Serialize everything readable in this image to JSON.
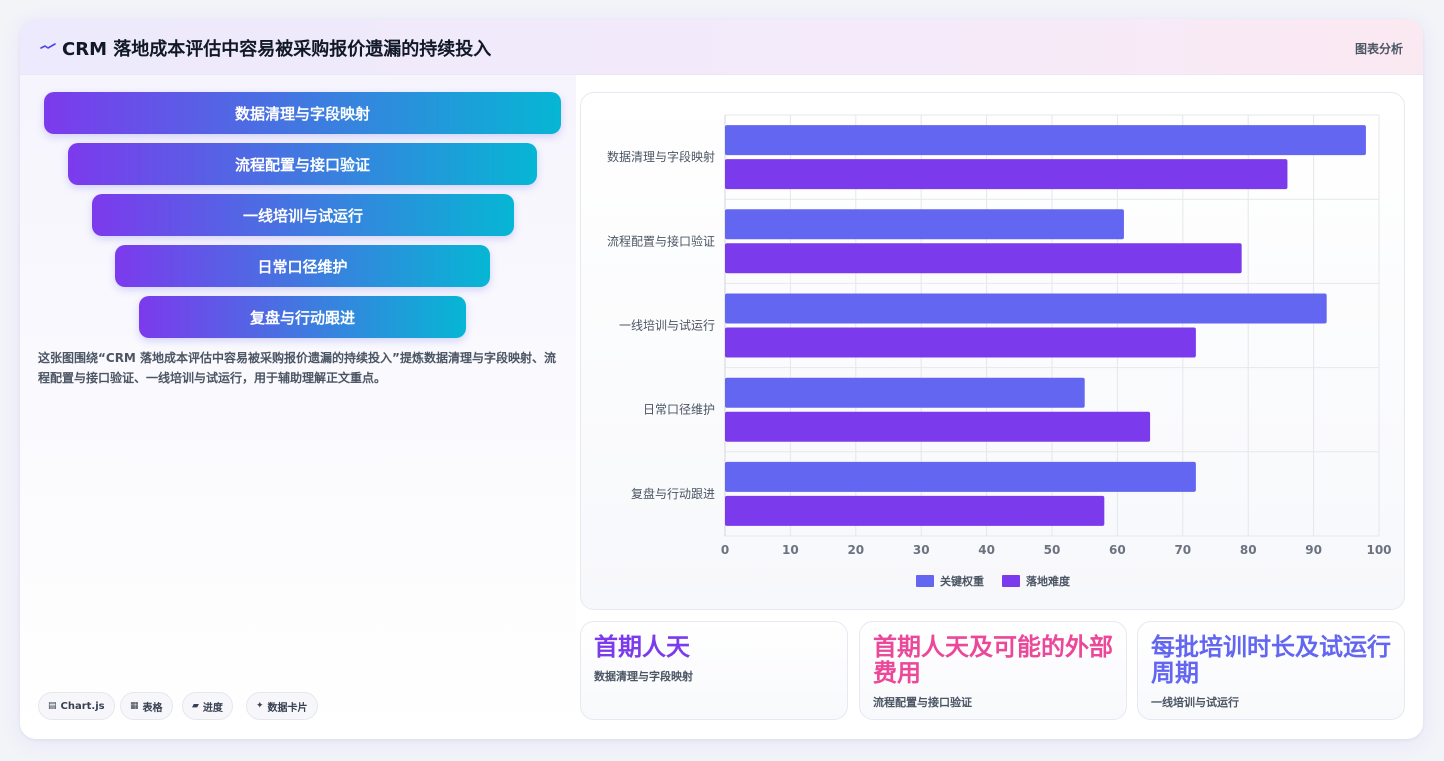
{
  "header": {
    "title": "CRM 落地成本评估中容易被采购报价遗漏的持续投入",
    "right_label": "图表分析"
  },
  "funnel": {
    "items": [
      "数据清理与字段映射",
      "流程配置与接口验证",
      "一线培训与试运行",
      "日常口径维护",
      "复盘与行动跟进"
    ]
  },
  "description": "这张图围绕“CRM 落地成本评估中容易被采购报价遗漏的持续投入”提炼数据清理与字段映射、流程配置与接口验证、一线培训与试运行，用于辅助理解正文重点。",
  "chips": [
    {
      "icon": "chart-icon",
      "glyph": "▤",
      "label": "Chart.js"
    },
    {
      "icon": "table-icon",
      "glyph": "▦",
      "label": "表格"
    },
    {
      "icon": "progress-icon",
      "glyph": "▰",
      "label": "进度"
    },
    {
      "icon": "sparkle-icon",
      "glyph": "✦",
      "label": "数据卡片"
    }
  ],
  "chart_data": {
    "type": "bar",
    "orientation": "horizontal",
    "categories": [
      "数据清理与字段映射",
      "流程配置与接口验证",
      "一线培训与试运行",
      "日常口径维护",
      "复盘与行动跟进"
    ],
    "series": [
      {
        "name": "关键权重",
        "color": "#6366f1",
        "values": [
          98,
          61,
          92,
          55,
          72
        ]
      },
      {
        "name": "落地难度",
        "color": "#7c3aed",
        "values": [
          86,
          79,
          72,
          65,
          58
        ]
      }
    ],
    "xlim": [
      0,
      100
    ],
    "xticks": [
      "0",
      "10",
      "20",
      "30",
      "40",
      "50",
      "60",
      "70",
      "80",
      "90",
      "100"
    ],
    "grid": true,
    "legend_position": "bottom"
  },
  "stats": [
    {
      "value": "首期人天",
      "label": "数据清理与字段映射",
      "color": "#7c3aed"
    },
    {
      "value": "首期人天及可能的外部费用",
      "label": "流程配置与接口验证",
      "color": "#ec4899"
    },
    {
      "value": "每批培训时长及试运行周期",
      "label": "一线培训与试运行",
      "color": "#6366f1"
    }
  ]
}
